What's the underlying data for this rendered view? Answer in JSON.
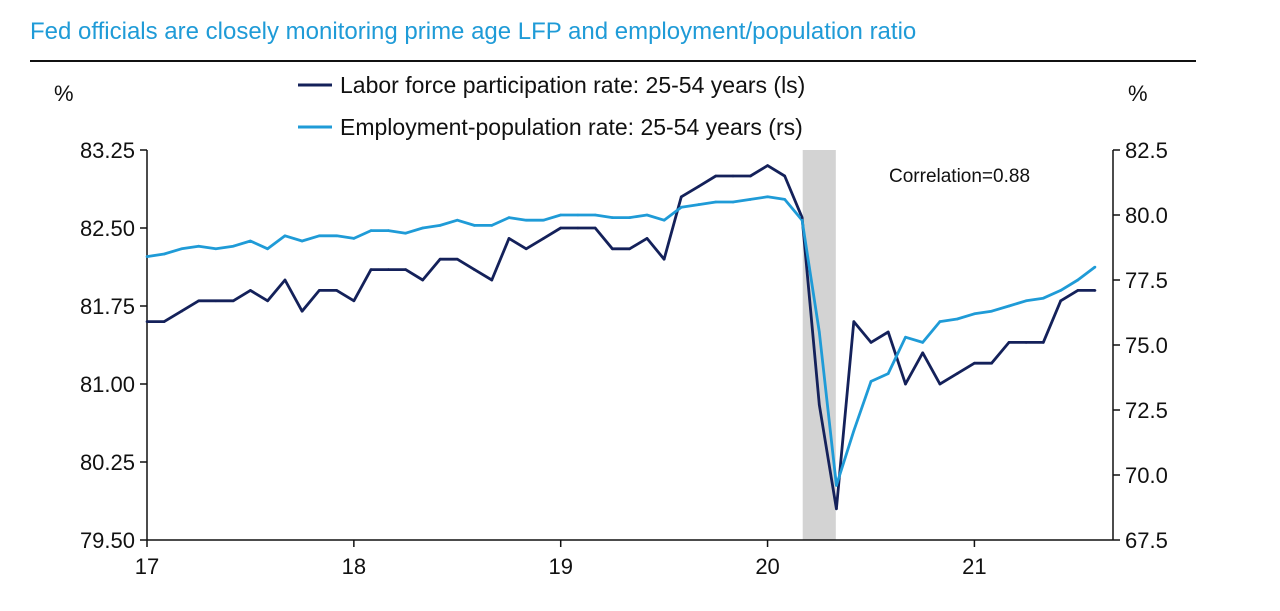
{
  "title": "Fed officials are closely monitoring prime age LFP and employment/population ratio",
  "colors": {
    "title": "#1f9bd7",
    "lfp": "#14215a",
    "epop": "#1f9bd7",
    "recession": "#d3d3d3"
  },
  "chart_data": {
    "type": "line",
    "title": "Fed officials are closely monitoring prime age LFP and employment/population ratio",
    "left_unit": "%",
    "right_unit": "%",
    "annotation": "Correlation=0.88",
    "x_ticks": [
      "17",
      "18",
      "19",
      "20",
      "21"
    ],
    "x_tick_values": [
      2017,
      2018,
      2019,
      2020,
      2021
    ],
    "xlim": [
      2017,
      2021.67
    ],
    "left_axis": {
      "ylim": [
        79.5,
        83.25
      ],
      "ticks": [
        "79.50",
        "80.25",
        "81.00",
        "81.75",
        "82.50",
        "83.25"
      ]
    },
    "right_axis": {
      "ylim": [
        67.5,
        82.5
      ],
      "ticks": [
        "67.5",
        "70.0",
        "72.5",
        "75.0",
        "77.5",
        "80.0",
        "82.5"
      ]
    },
    "shaded_region": {
      "x": [
        2020.17,
        2020.33
      ],
      "label": ""
    },
    "x": [
      2017.0,
      2017.083,
      2017.167,
      2017.25,
      2017.333,
      2017.417,
      2017.5,
      2017.583,
      2017.667,
      2017.75,
      2017.833,
      2017.917,
      2018.0,
      2018.083,
      2018.167,
      2018.25,
      2018.333,
      2018.417,
      2018.5,
      2018.583,
      2018.667,
      2018.75,
      2018.833,
      2018.917,
      2019.0,
      2019.083,
      2019.167,
      2019.25,
      2019.333,
      2019.417,
      2019.5,
      2019.583,
      2019.667,
      2019.75,
      2019.833,
      2019.917,
      2020.0,
      2020.083,
      2020.167,
      2020.25,
      2020.333,
      2020.417,
      2020.5,
      2020.583,
      2020.667,
      2020.75,
      2020.833,
      2020.917,
      2021.0,
      2021.083,
      2021.167,
      2021.25,
      2021.333,
      2021.417,
      2021.5,
      2021.583
    ],
    "series": [
      {
        "name": "Labor force participation rate: 25-54 years (ls)",
        "axis": "left",
        "values": [
          81.6,
          81.6,
          81.7,
          81.8,
          81.8,
          81.8,
          81.9,
          81.8,
          82.0,
          81.7,
          81.9,
          81.9,
          81.8,
          82.1,
          82.1,
          82.1,
          82.0,
          82.2,
          82.2,
          82.1,
          82.0,
          82.4,
          82.3,
          82.4,
          82.5,
          82.5,
          82.5,
          82.3,
          82.3,
          82.4,
          82.2,
          82.8,
          82.9,
          83.0,
          83.0,
          83.0,
          83.1,
          83.0,
          82.6,
          80.8,
          79.8,
          81.6,
          81.4,
          81.5,
          81.0,
          81.3,
          81.0,
          81.1,
          81.2,
          81.2,
          81.4,
          81.4,
          81.4,
          81.8,
          81.9,
          81.9
        ]
      },
      {
        "name": "Employment-population rate: 25-54 years (rs)",
        "axis": "right",
        "values": [
          78.4,
          78.5,
          78.7,
          78.8,
          78.7,
          78.8,
          79.0,
          78.7,
          79.2,
          79.0,
          79.2,
          79.2,
          79.1,
          79.4,
          79.4,
          79.3,
          79.5,
          79.6,
          79.8,
          79.6,
          79.6,
          79.9,
          79.8,
          79.8,
          80.0,
          80.0,
          80.0,
          79.9,
          79.9,
          80.0,
          79.8,
          80.3,
          80.4,
          80.5,
          80.5,
          80.6,
          80.7,
          80.6,
          79.8,
          75.5,
          69.6,
          71.7,
          73.6,
          73.9,
          75.3,
          75.1,
          75.9,
          76.0,
          76.2,
          76.3,
          76.5,
          76.7,
          76.8,
          77.1,
          77.5,
          78.0
        ]
      }
    ]
  }
}
